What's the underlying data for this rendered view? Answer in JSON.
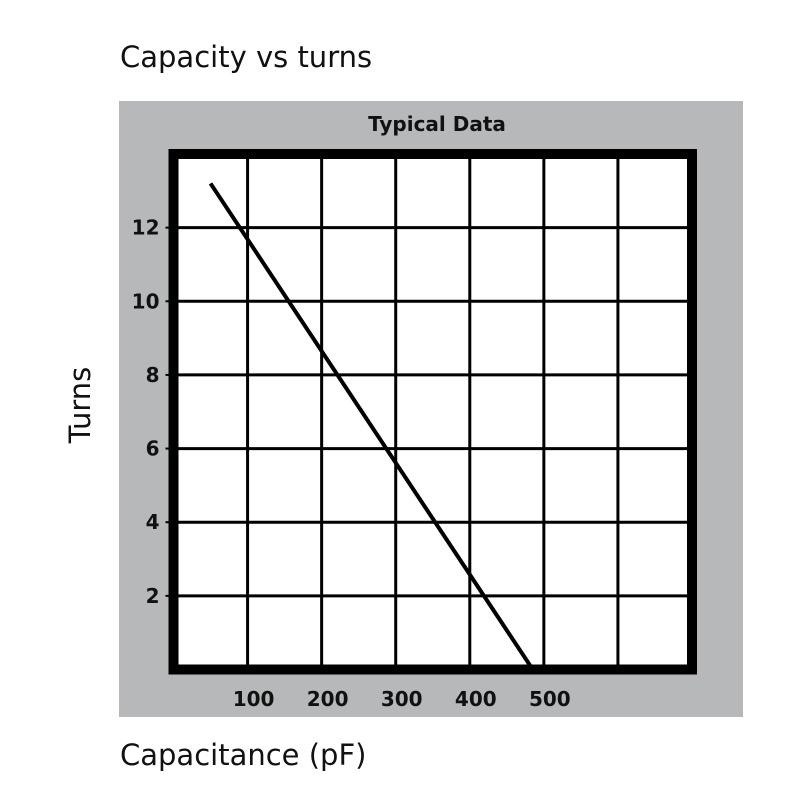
{
  "chart_data": {
    "type": "line",
    "title": "Capacity vs turns",
    "subtitle": "Typical Data",
    "xlabel": "Capacitance (pF)",
    "ylabel": "Turns",
    "xlim": [
      0,
      700
    ],
    "ylim": [
      0,
      14
    ],
    "x_ticks": [
      100,
      200,
      300,
      400,
      500
    ],
    "x_gridlines": [
      100,
      200,
      300,
      400,
      500,
      600
    ],
    "y_ticks": [
      2,
      4,
      6,
      8,
      10,
      12
    ],
    "grid": true,
    "series": [
      {
        "name": "Typical Data",
        "x": [
          50,
          485
        ],
        "y": [
          13.2,
          0
        ]
      }
    ],
    "colors": {
      "panel": "#b6b8ba",
      "plot": "#ffffff",
      "line": "#000000"
    }
  }
}
